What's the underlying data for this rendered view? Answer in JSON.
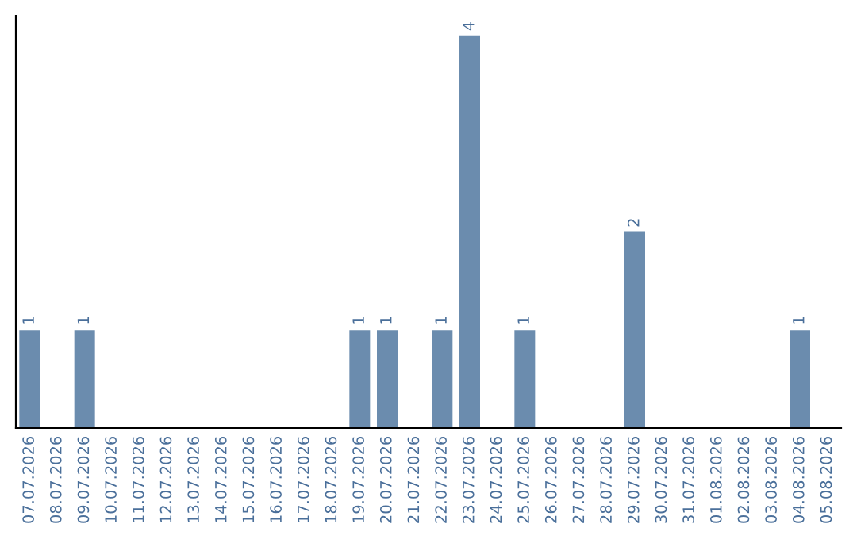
{
  "chart_data": {
    "type": "bar",
    "categories": [
      "07.07.2026",
      "08.07.2026",
      "09.07.2026",
      "10.07.2026",
      "11.07.2026",
      "12.07.2026",
      "13.07.2026",
      "14.07.2026",
      "15.07.2026",
      "16.07.2026",
      "17.07.2026",
      "18.07.2026",
      "19.07.2026",
      "20.07.2026",
      "21.07.2026",
      "22.07.2026",
      "23.07.2026",
      "24.07.2026",
      "25.07.2026",
      "26.07.2026",
      "27.07.2026",
      "28.07.2026",
      "29.07.2026",
      "30.07.2026",
      "31.07.2026",
      "01.08.2026",
      "02.08.2026",
      "03.08.2026",
      "04.08.2026",
      "05.08.2026"
    ],
    "values": [
      1,
      0,
      1,
      0,
      0,
      0,
      0,
      0,
      0,
      0,
      0,
      0,
      1,
      1,
      0,
      1,
      4,
      0,
      1,
      0,
      0,
      0,
      2,
      0,
      0,
      0,
      0,
      0,
      1,
      0
    ],
    "value_labels": [
      "1",
      null,
      "1",
      null,
      null,
      null,
      null,
      null,
      null,
      null,
      null,
      null,
      "1",
      "1",
      null,
      "1",
      "4",
      null,
      "1",
      null,
      null,
      null,
      "2",
      null,
      null,
      null,
      null,
      null,
      "1",
      null
    ],
    "color": "#6b8cae",
    "grid": false,
    "legend": false,
    "tick_labels": "x"
  }
}
